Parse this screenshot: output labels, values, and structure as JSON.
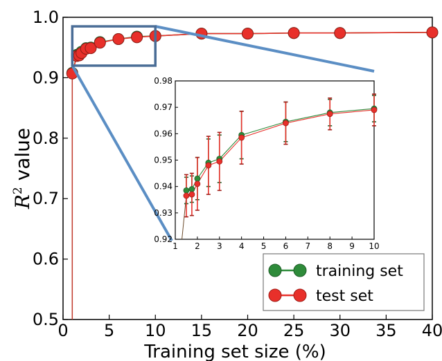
{
  "chart_data": [
    {
      "type": "line",
      "xlabel": "Training set size (%)",
      "ylabel_var": "R",
      "ylabel_sup": "2",
      "ylabel_rest": " value",
      "xlim": [
        0,
        40
      ],
      "ylim": [
        0.5,
        1.0
      ],
      "xticks": [
        "0",
        "5",
        "10",
        "15",
        "20",
        "25",
        "30",
        "35",
        "40"
      ],
      "yticks": [
        "0.5",
        "0.6",
        "0.7",
        "0.8",
        "0.9",
        "1.0"
      ],
      "legend_position": "lower-right",
      "series": [
        {
          "name": "training set",
          "color": "#2e8b3a",
          "x": [
            1,
            1.5,
            1.75,
            2,
            2.5,
            3,
            4,
            6,
            8,
            10,
            15,
            20,
            25,
            30,
            40
          ],
          "y": [
            0.908,
            0.938,
            0.939,
            0.943,
            0.949,
            0.95,
            0.959,
            0.964,
            0.968,
            0.969,
            0.973,
            0.973,
            0.974,
            0.974,
            0.975
          ]
        },
        {
          "name": "test set",
          "color": "#e8302a",
          "x": [
            1,
            1.5,
            1.75,
            2,
            2.5,
            3,
            4,
            6,
            8,
            10,
            15,
            20,
            25,
            30,
            40
          ],
          "y": [
            0.907,
            0.936,
            0.937,
            0.941,
            0.948,
            0.949,
            0.958,
            0.964,
            0.967,
            0.969,
            0.973,
            0.973,
            0.974,
            0.974,
            0.975
          ]
        }
      ]
    },
    {
      "type": "line",
      "title": "",
      "xlim": [
        1,
        10
      ],
      "ylim": [
        0.92,
        0.98
      ],
      "xticks": [
        "1",
        "2",
        "3",
        "4",
        "5",
        "6",
        "7",
        "8",
        "9",
        "10"
      ],
      "yticks": [
        "0.92",
        "0.93",
        "0.94",
        "0.95",
        "0.96",
        "0.97",
        "0.98"
      ],
      "series": [
        {
          "name": "training set",
          "color": "#2e8b3a",
          "x": [
            1.5,
            1.75,
            2,
            2.5,
            3,
            4,
            6,
            8,
            10
          ],
          "y": [
            0.9385,
            0.939,
            0.943,
            0.949,
            0.9505,
            0.9595,
            0.9645,
            0.968,
            0.9695
          ],
          "err": [
            0.005,
            0.005,
            0.008,
            0.009,
            0.009,
            0.009,
            0.0075,
            0.005,
            0.005
          ]
        },
        {
          "name": "test set",
          "color": "#e8302a",
          "x": [
            1.5,
            1.75,
            2,
            2.5,
            3,
            4,
            6,
            8,
            10
          ],
          "y": [
            0.9365,
            0.937,
            0.941,
            0.948,
            0.9495,
            0.9585,
            0.964,
            0.9675,
            0.969
          ],
          "err": [
            0.008,
            0.008,
            0.01,
            0.011,
            0.011,
            0.01,
            0.008,
            0.006,
            0.006
          ]
        }
      ]
    }
  ],
  "legend": {
    "training_label": "training set",
    "test_label": "test set"
  },
  "colors": {
    "zoom_box": "#5b8ec4",
    "training": "#2e8b3a",
    "test": "#e8302a"
  }
}
